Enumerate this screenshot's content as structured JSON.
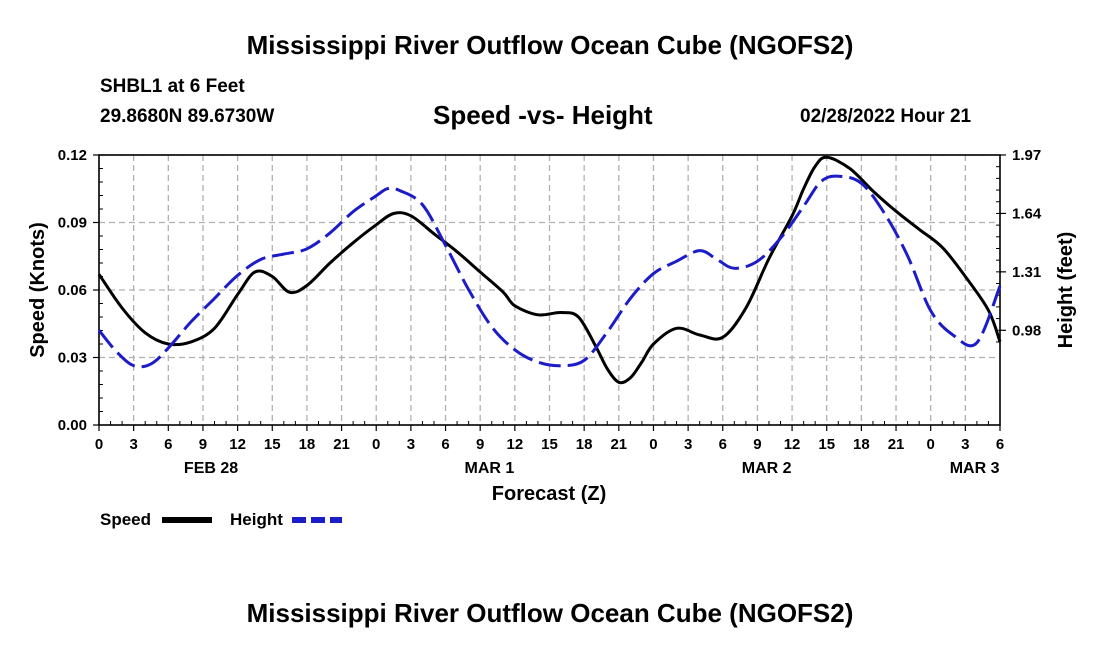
{
  "header": {
    "title": "Mississippi River Outflow Ocean Cube (NGOFS2)",
    "station_line": "SHBL1 at 6 Feet",
    "coords": "29.8680N  89.6730W",
    "subtitle": "Speed -vs- Height",
    "timestamp": "02/28/2022 Hour 21"
  },
  "footer": {
    "title": "Mississippi River Outflow Ocean Cube (NGOFS2)"
  },
  "colors": {
    "speed": "#000000",
    "height": "#1c1cc8",
    "grid": "#b0b0b0"
  },
  "chart_data": {
    "type": "line",
    "title": "Speed -vs- Height",
    "xlabel": "Forecast (Z)",
    "ylabel": "Speed (Knots)",
    "y2label": "Height (feet)",
    "xlim": [
      0,
      78
    ],
    "ylim": [
      0,
      0.12
    ],
    "y2lim": [
      0.445,
      1.97
    ],
    "x_tick_labels": [
      "0",
      "3",
      "6",
      "9",
      "12",
      "15",
      "18",
      "21",
      "0",
      "3",
      "6",
      "9",
      "12",
      "15",
      "18",
      "21",
      "0",
      "3",
      "6",
      "9",
      "12",
      "15",
      "18",
      "21",
      "0",
      "3",
      "6"
    ],
    "y_tick_labels": [
      "0.00",
      "0.03",
      "0.06",
      "0.09",
      "0.12"
    ],
    "y_tick_values": [
      0,
      0.03,
      0.06,
      0.09,
      0.12
    ],
    "y2_tick_labels": [
      "0.98",
      "1.31",
      "1.64",
      "1.97"
    ],
    "y2_tick_values": [
      0.98,
      1.31,
      1.64,
      1.97
    ],
    "date_labels": [
      {
        "label": "FEB 28",
        "x": 9.7
      },
      {
        "label": "MAR 1",
        "x": 33.8
      },
      {
        "label": "MAR 2",
        "x": 57.8
      },
      {
        "label": "MAR 3",
        "x": 75.8
      }
    ],
    "legend": [
      {
        "name": "Speed",
        "style": "solid"
      },
      {
        "name": "Height",
        "style": "dashed"
      }
    ],
    "series": [
      {
        "name": "Speed",
        "axis": "left",
        "x": [
          0,
          2,
          4,
          6,
          8,
          10,
          12,
          13.5,
          15,
          16.5,
          18,
          20,
          22,
          24,
          25.5,
          27,
          29,
          31,
          33,
          35,
          36,
          38,
          40,
          41.5,
          43,
          44,
          45,
          46,
          47,
          48,
          50,
          52,
          54,
          56,
          58,
          60,
          61,
          62,
          63,
          65,
          67,
          69,
          71,
          73,
          75,
          77,
          78
        ],
        "values": [
          0.067,
          0.052,
          0.041,
          0.036,
          0.037,
          0.043,
          0.058,
          0.068,
          0.066,
          0.059,
          0.062,
          0.072,
          0.081,
          0.089,
          0.094,
          0.093,
          0.085,
          0.077,
          0.068,
          0.059,
          0.053,
          0.049,
          0.05,
          0.048,
          0.035,
          0.025,
          0.019,
          0.021,
          0.028,
          0.036,
          0.043,
          0.04,
          0.039,
          0.052,
          0.074,
          0.093,
          0.105,
          0.115,
          0.119,
          0.114,
          0.104,
          0.095,
          0.087,
          0.079,
          0.066,
          0.051,
          0.037
        ]
      },
      {
        "name": "Height",
        "axis": "right",
        "x": [
          0,
          1.5,
          3,
          4.5,
          6,
          8,
          10,
          12,
          14,
          16,
          18,
          20,
          22,
          24,
          25,
          26,
          28,
          30,
          32,
          34,
          36,
          38,
          40,
          42,
          44,
          46,
          48,
          50,
          52,
          53.5,
          55,
          57,
          59,
          61,
          62.5,
          64,
          66,
          68,
          70,
          72,
          74,
          76,
          78
        ],
        "values": [
          0.98,
          0.86,
          0.78,
          0.79,
          0.88,
          1.03,
          1.16,
          1.29,
          1.38,
          1.41,
          1.44,
          1.53,
          1.65,
          1.74,
          1.78,
          1.77,
          1.69,
          1.46,
          1.21,
          1.0,
          0.87,
          0.8,
          0.78,
          0.81,
          0.97,
          1.16,
          1.3,
          1.37,
          1.43,
          1.38,
          1.33,
          1.37,
          1.5,
          1.68,
          1.82,
          1.85,
          1.81,
          1.64,
          1.4,
          1.09,
          0.95,
          0.91,
          1.23
        ]
      }
    ]
  }
}
